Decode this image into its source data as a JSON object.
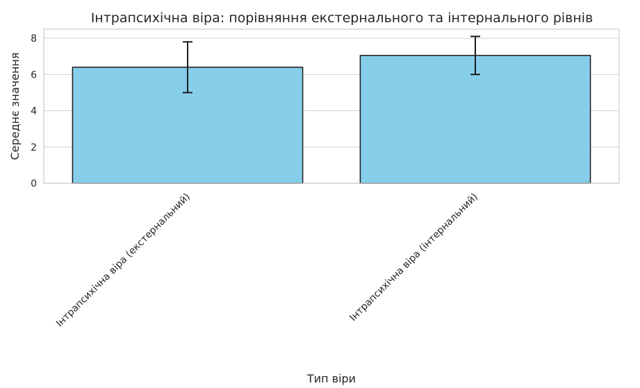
{
  "chart_data": {
    "type": "bar",
    "title": "Інтрапсихічна віра: порівняння екстернального та інтернального рівнів",
    "xlabel": "Тип віри",
    "ylabel": "Середнє значення",
    "categories": [
      "Інтрапсихічна віра (екстернальний)",
      "Інтрапсихічна віра (інтернальний)"
    ],
    "values": [
      6.4,
      7.05
    ],
    "error": [
      1.4,
      1.05
    ],
    "ylim": [
      0,
      8.5
    ],
    "yticks": [
      0,
      2,
      4,
      6,
      8
    ],
    "bar_color": "#87CEEB",
    "grid": true
  }
}
